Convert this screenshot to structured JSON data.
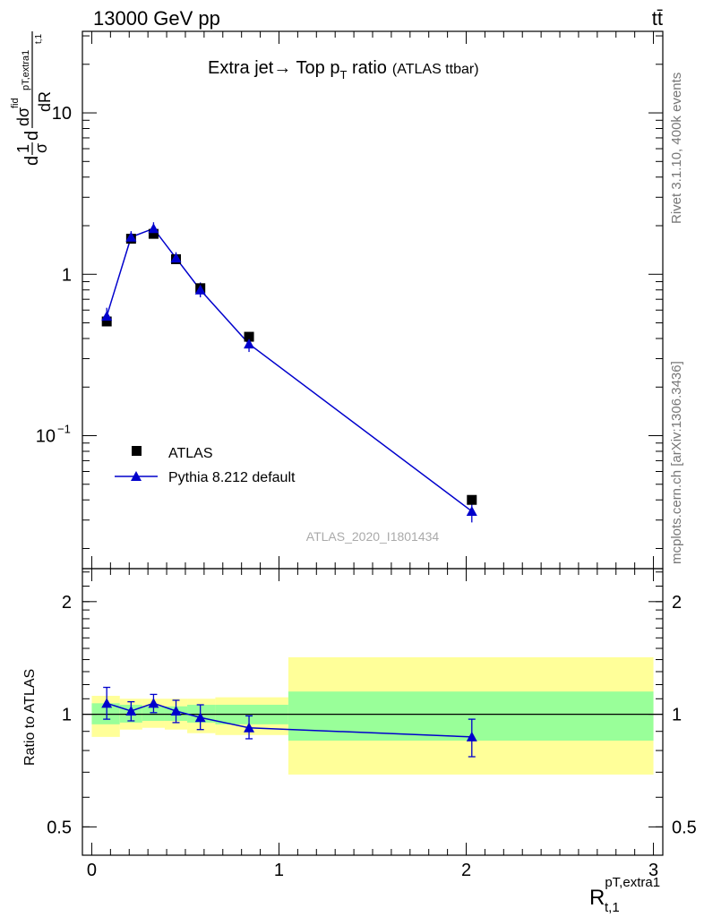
{
  "header": {
    "energy_label": "13000 GeV pp",
    "process_label": "tt̄"
  },
  "side_labels": {
    "rivet": "Rivet 3.1.10,  400k events",
    "mcplots": "mcplots.cern.ch [arXiv:1306.3436]"
  },
  "colors": {
    "mc": "#0000cc",
    "data": "#000000",
    "band_inner": "#99ff99",
    "band_outer": "#ffff99"
  },
  "chart_data": [
    {
      "type": "scatter",
      "title": "Extra jet→ Top p",
      "title_sub": "T",
      "title_suffix": " ratio",
      "title_note": "(ATLAS ttbar)",
      "ylabel_parts": [
        "d",
        "1",
        "σ",
        "d",
        "dσ",
        "fid",
        "pT,extra1",
        "t,1",
        "dR"
      ],
      "yscale": "log",
      "ylim": [
        0.015,
        32
      ],
      "xlim": [
        -0.05,
        3.05
      ],
      "y_ticks": [
        {
          "value": 10,
          "label": "10"
        },
        {
          "value": 1,
          "label": "1"
        },
        {
          "value": 0.1,
          "label": "10",
          "exp": "−1"
        }
      ],
      "watermark": "ATLAS_2020_I1801434",
      "legend": {
        "position": "bottom-left",
        "entries": [
          {
            "label": "ATLAS",
            "marker": "square"
          },
          {
            "label": "Pythia 8.212 default",
            "marker": "triangle"
          }
        ]
      },
      "series": [
        {
          "name": "ATLAS",
          "x": [
            0.08,
            0.21,
            0.33,
            0.45,
            0.58,
            0.84,
            2.03
          ],
          "y": [
            0.51,
            1.66,
            1.78,
            1.24,
            0.82,
            0.41,
            0.04
          ]
        },
        {
          "name": "Pythia 8.212 default",
          "x": [
            0.08,
            0.21,
            0.33,
            0.45,
            0.58,
            0.84,
            2.03
          ],
          "y": [
            0.55,
            1.7,
            1.92,
            1.26,
            0.8,
            0.37,
            0.034
          ],
          "yerr_lo": [
            0.05,
            0.14,
            0.16,
            0.1,
            0.08,
            0.04,
            0.005
          ],
          "yerr_hi": [
            0.07,
            0.15,
            0.18,
            0.11,
            0.09,
            0.04,
            0.005
          ]
        }
      ]
    },
    {
      "type": "scatter",
      "ylabel": "Ratio to ATLAS",
      "xlabel": "R",
      "xlabel_sup": "pT,extra1",
      "xlabel_sub": "t,1",
      "yscale": "log",
      "ylim": [
        0.42,
        2.45
      ],
      "xlim": [
        -0.05,
        3.05
      ],
      "x_ticks": [
        0,
        1,
        2,
        3
      ],
      "y_ticks": [
        2,
        1,
        0.5
      ],
      "bands": [
        {
          "x_lo": 0.0,
          "x_hi": 0.15,
          "inner": [
            0.94,
            1.07
          ],
          "outer": [
            0.87,
            1.12
          ]
        },
        {
          "x_lo": 0.15,
          "x_hi": 0.27,
          "inner": [
            0.95,
            1.06
          ],
          "outer": [
            0.91,
            1.1
          ]
        },
        {
          "x_lo": 0.27,
          "x_hi": 0.39,
          "inner": [
            0.96,
            1.05
          ],
          "outer": [
            0.92,
            1.1
          ]
        },
        {
          "x_lo": 0.39,
          "x_hi": 0.51,
          "inner": [
            0.96,
            1.05
          ],
          "outer": [
            0.91,
            1.1
          ]
        },
        {
          "x_lo": 0.51,
          "x_hi": 0.66,
          "inner": [
            0.95,
            1.06
          ],
          "outer": [
            0.89,
            1.1
          ]
        },
        {
          "x_lo": 0.66,
          "x_hi": 1.05,
          "inner": [
            0.94,
            1.06
          ],
          "outer": [
            0.88,
            1.11
          ]
        },
        {
          "x_lo": 1.05,
          "x_hi": 3.0,
          "inner": [
            0.85,
            1.15
          ],
          "outer": [
            0.69,
            1.42
          ]
        }
      ],
      "series": [
        {
          "name": "Pythia 8.212 default",
          "x": [
            0.08,
            0.21,
            0.33,
            0.45,
            0.58,
            0.84,
            2.03
          ],
          "y": [
            1.07,
            1.02,
            1.07,
            1.02,
            0.98,
            0.92,
            0.87
          ],
          "yerr_lo": [
            0.1,
            0.06,
            0.06,
            0.07,
            0.07,
            0.06,
            0.1
          ],
          "yerr_hi": [
            0.11,
            0.06,
            0.06,
            0.07,
            0.08,
            0.07,
            0.1
          ]
        }
      ]
    }
  ]
}
